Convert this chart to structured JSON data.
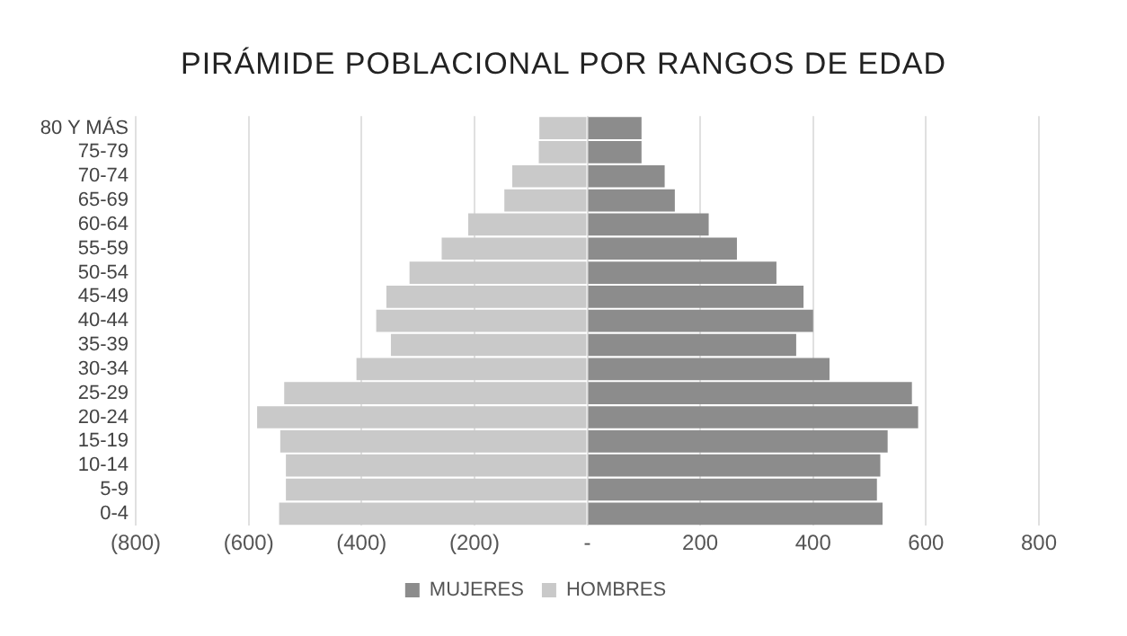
{
  "chart_data": {
    "type": "bar",
    "orientation": "horizontal",
    "stacked": true,
    "title": "PIRÁMIDE POBLACIONAL POR RANGOS DE EDAD",
    "categories": [
      "80 Y MÁS",
      "75-79",
      "70-74",
      "65-69",
      "60-64",
      "55-59",
      "50-54",
      "45-49",
      "40-44",
      "35-39",
      "30-34",
      "25-29",
      "20-24",
      "15-19",
      "10-14",
      "5-9",
      "0-4"
    ],
    "series": [
      {
        "name": "MUJERES",
        "color": "#8c8c8c",
        "values": [
          96,
          96,
          137,
          155,
          215,
          265,
          335,
          383,
          400,
          370,
          429,
          575,
          586,
          532,
          519,
          513,
          523
        ]
      },
      {
        "name": "HOMBRES",
        "color": "#c9c9c9",
        "values": [
          -85,
          -86,
          -133,
          -147,
          -211,
          -258,
          -315,
          -356,
          -374,
          -348,
          -409,
          -537,
          -585,
          -544,
          -534,
          -534,
          -546
        ]
      }
    ],
    "xlim": [
      -800,
      800
    ],
    "xticks": [
      {
        "value": -800,
        "label": "(800)"
      },
      {
        "value": -600,
        "label": "(600)"
      },
      {
        "value": -400,
        "label": "(400)"
      },
      {
        "value": -200,
        "label": "(200)"
      },
      {
        "value": 0,
        "label": "-"
      },
      200,
      400,
      600,
      800
    ],
    "grid": "x",
    "legend": "bottom"
  }
}
